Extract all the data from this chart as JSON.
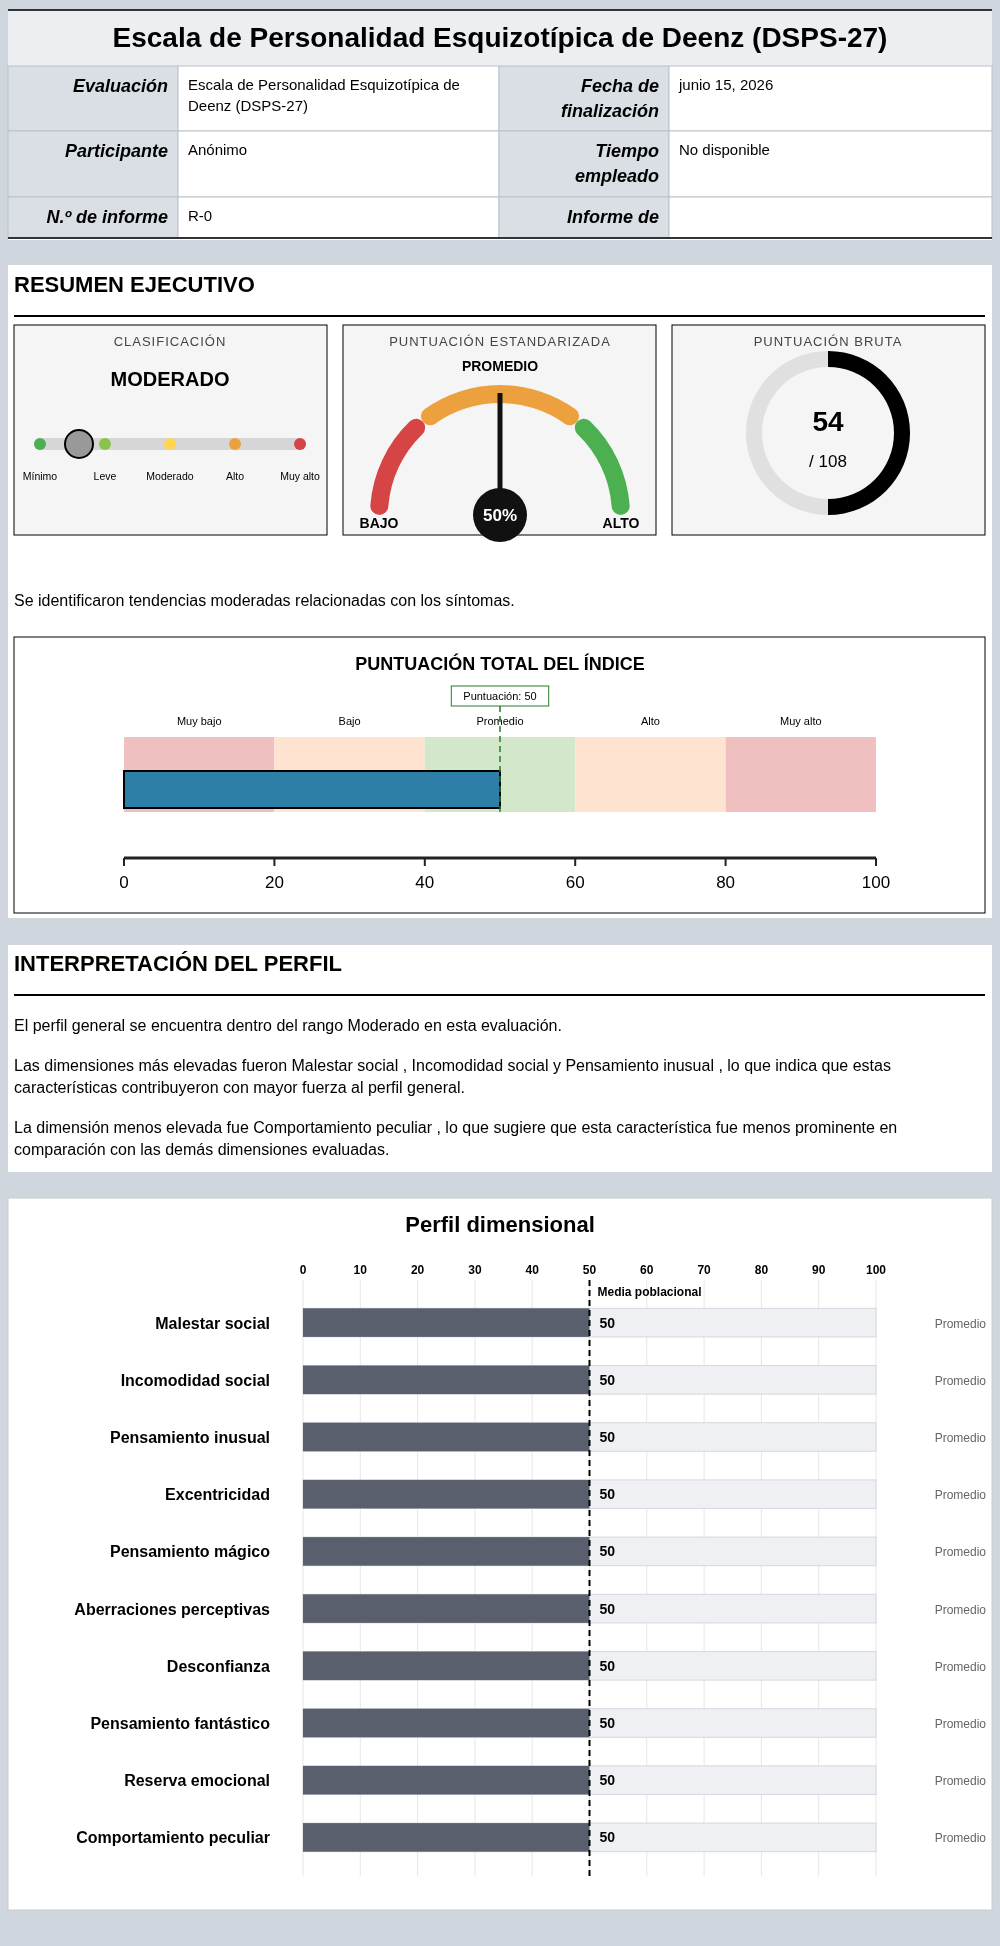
{
  "chart_data": [
    {
      "type": "other",
      "title": "Escala de Personalidad Esquizotípica de Deenz (DSPS-27)",
      "annotations": [
        "Evaluación",
        "Escala de Personalidad Esquizotípica de Deenz (DSPS-27)",
        "Fecha de finalización",
        "junio 15, 2026",
        "Participante",
        "Anónimo",
        "Tiempo empleado",
        "No disponible",
        "N.º de informe",
        "R-0",
        "Informe de"
      ]
    },
    {
      "type": "other",
      "title": "RESUMEN EJECUTIVO"
    },
    {
      "type": "other",
      "title": "CLASIFICACIÓN",
      "subtitle": "MODERADO",
      "categories": [
        "Mínimo",
        "Leve",
        "Moderado",
        "Alto",
        "Muy alto"
      ]
    },
    {
      "type": "donut",
      "title": "PUNTUACIÓN ESTANDARIZADA",
      "categories": [
        "BAJO",
        "PROMEDIO",
        "ALTO"
      ],
      "values": [
        28,
        44,
        28
      ],
      "colors": [
        "#d64545",
        "#eda03e",
        "#4caf50"
      ],
      "needle": "PROMEDIO",
      "annotations": [
        "50%"
      ]
    },
    {
      "type": "donut",
      "title": "PUNTUACIÓN BRUTA",
      "categories": [
        null,
        null
      ],
      "values": [
        50,
        50
      ],
      "colors": [
        "#000000",
        "#e0e0e0"
      ],
      "annotations": [
        "54",
        "/ 108"
      ]
    },
    {
      "type": "other",
      "annotations": [
        "Se identificaron tendencias moderadas relacionadas con los síntomas."
      ]
    },
    {
      "type": "bar",
      "orientation": "horizontal",
      "title": "PUNTUACIÓN TOTAL DEL ÍNDICE",
      "categories": [
        null
      ],
      "values": [
        50
      ],
      "color": "#2e7fa8",
      "xlim": [
        0,
        100
      ],
      "xticks": [
        0,
        20,
        40,
        60,
        80,
        100
      ],
      "bands": [
        {
          "axis": "x",
          "from": 0,
          "to": 20,
          "label": "Muy bajo",
          "color": "#f0c0c0"
        },
        {
          "axis": "x",
          "from": 20,
          "to": 40,
          "label": "Bajo",
          "color": "#fde3d0"
        },
        {
          "axis": "x",
          "from": 40,
          "to": 60,
          "label": "Promedio",
          "color": "#d3e8cb"
        },
        {
          "axis": "x",
          "from": 60,
          "to": 80,
          "label": "Alto",
          "color": "#fde3d0"
        },
        {
          "axis": "x",
          "from": 80,
          "to": 100,
          "label": "Muy alto",
          "color": "#f0c0c0"
        }
      ],
      "ref_lines": [
        {
          "axis": "x",
          "value": 50,
          "label": "Puntuación: 50",
          "color": "#2a7a2a",
          "line_style": "dashed"
        }
      ]
    },
    {
      "type": "other",
      "title": "INTERPRETACIÓN DEL PERFIL",
      "annotations": [
        "El perfil general se encuentra dentro del rango Moderado en esta evaluación.",
        "Las dimensiones más elevadas fueron Malestar social , Incomodidad social y Pensamiento inusual , lo que indica que estas características contribuyeron con mayor fuerza al perfil general.",
        "La dimensión menos elevada fue Comportamiento peculiar , lo que sugiere que esta característica fue menos prominente en comparación con las demás dimensiones evaluadas."
      ]
    },
    {
      "type": "bar",
      "orientation": "horizontal",
      "title": "Perfil dimensional",
      "categories": [
        "Malestar social",
        "Incomodidad social",
        "Pensamiento inusual",
        "Excentricidad",
        "Pensamiento mágico",
        "Aberraciones perceptivas",
        "Desconfianza",
        "Pensamiento fantástico",
        "Reserva emocional",
        "Comportamiento peculiar"
      ],
      "values": [
        50,
        50,
        50,
        50,
        50,
        50,
        50,
        50,
        50,
        50
      ],
      "color": "#5a5f6e",
      "data_labels": true,
      "grid": "x",
      "xlim": [
        0,
        100
      ],
      "xticks": [
        0,
        10,
        20,
        30,
        40,
        50,
        60,
        70,
        80,
        90,
        100
      ],
      "ref_lines": [
        {
          "axis": "x",
          "value": 50,
          "label": "Media poblacional",
          "color": "#000000",
          "line_style": "dashed"
        }
      ],
      "annotations": [
        "Promedio",
        "Promedio",
        "Promedio",
        "Promedio",
        "Promedio",
        "Promedio",
        "Promedio",
        "Promedio",
        "Promedio",
        "Promedio"
      ]
    }
  ]
}
